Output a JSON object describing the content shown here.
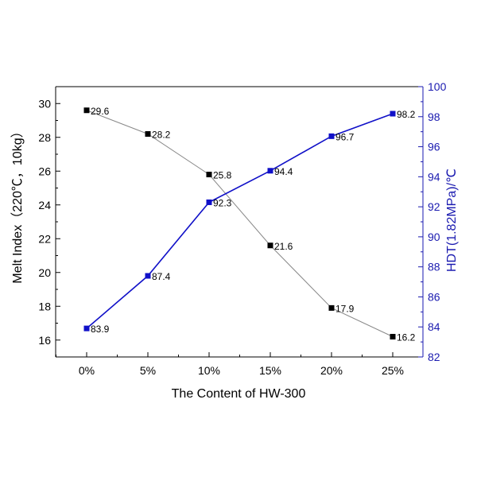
{
  "chart_data": {
    "type": "line",
    "title": "",
    "xlabel": "The Content of HW-300",
    "ylabel_left": "Melt Index（220℃，10kg）",
    "ylabel_right": "HDT(1.82MPa)/℃",
    "categories": [
      "0%",
      "5%",
      "10%",
      "15%",
      "20%",
      "25%"
    ],
    "y_left": {
      "range": [
        15,
        31
      ],
      "ticks": [
        "16",
        "18",
        "20",
        "22",
        "24",
        "26",
        "28",
        "30"
      ]
    },
    "y_right": {
      "range": [
        82,
        100
      ],
      "ticks": [
        "82",
        "84",
        "86",
        "88",
        "90",
        "92",
        "94",
        "96",
        "98",
        "100"
      ]
    },
    "series": [
      {
        "axis": "left",
        "color": "#000000",
        "line_color": "#888888",
        "values": [
          29.6,
          28.2,
          25.8,
          21.6,
          17.9,
          16.2
        ],
        "labels": [
          "29.6",
          "28.2",
          "25.8",
          "21.6",
          "17.9",
          "16.2"
        ]
      },
      {
        "axis": "right",
        "color": "#1010c8",
        "line_color": "#1010c8",
        "values": [
          83.9,
          87.4,
          92.3,
          94.4,
          96.7,
          98.2
        ],
        "labels": [
          "83.9",
          "87.4",
          "92.3",
          "94.4",
          "96.7",
          "98.2"
        ]
      }
    ],
    "grid": false,
    "legend": "none",
    "right_axis_color": "#1a1ab0"
  }
}
